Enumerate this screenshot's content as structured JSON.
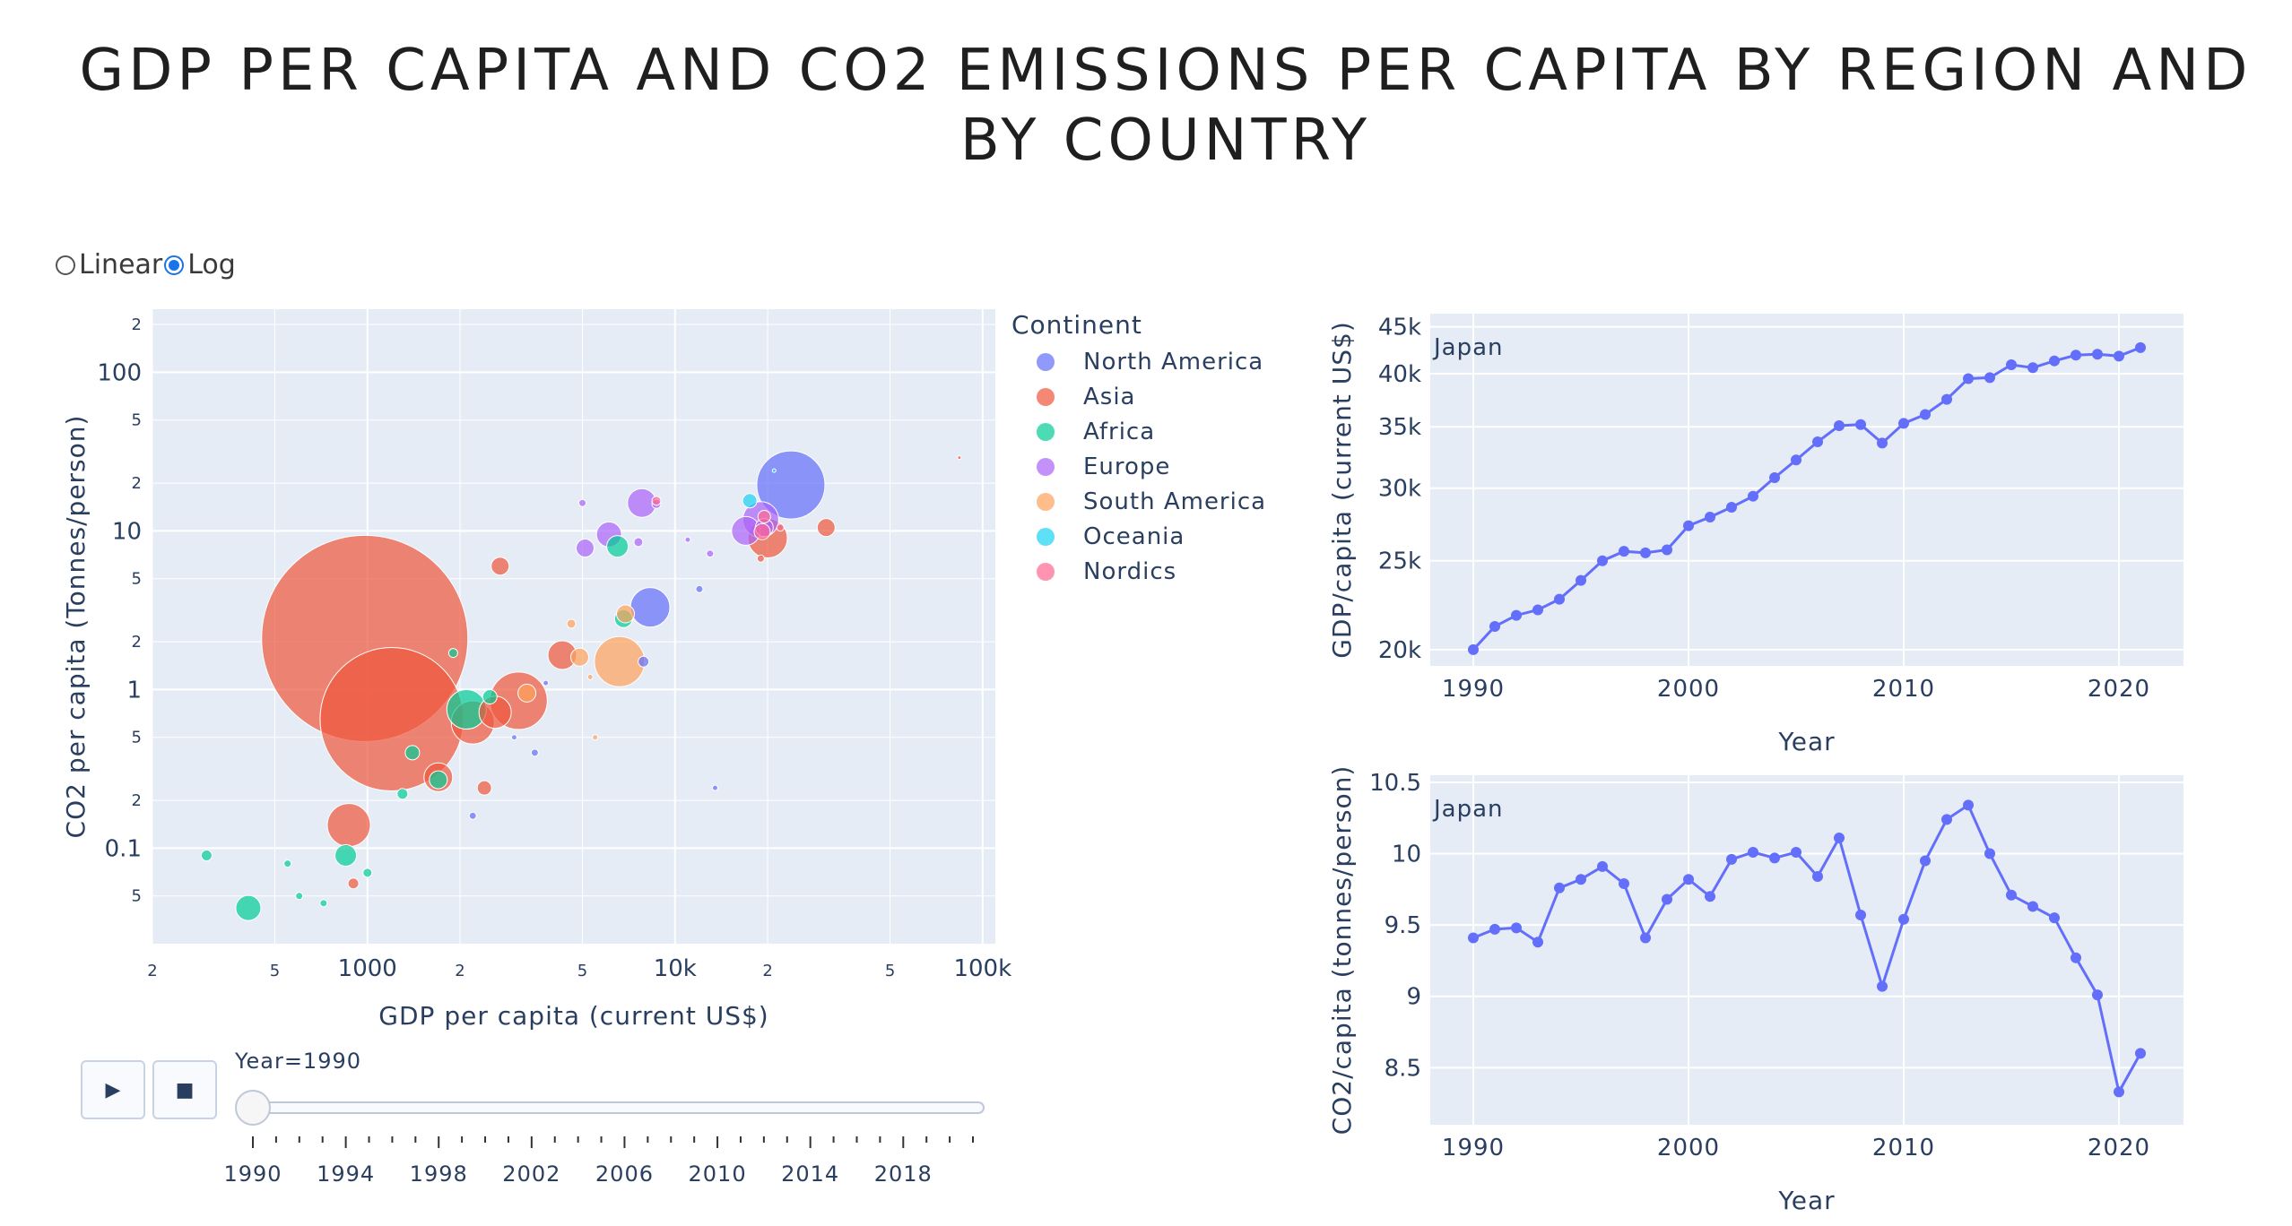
{
  "title": "GDP PER CAPITA AND CO2 EMISSIONS PER CAPITA BY REGION AND BY COUNTRY",
  "scale_toggle": {
    "options": [
      "Linear",
      "Log"
    ],
    "selected": "Log"
  },
  "colors": {
    "North America": "#636efa",
    "Asia": "#ef553b",
    "Africa": "#00cc96",
    "Europe": "#ab63fa",
    "South America": "#ffa15a",
    "Oceania": "#19d3f3",
    "Nordics": "#ff6692",
    "line": "#636efa",
    "plot_bg": "#e5ecf6"
  },
  "animation": {
    "play_icon": "play-icon",
    "stop_icon": "stop-icon",
    "current_label": "Year=1990",
    "tick_labels": [
      "1990",
      "1994",
      "1998",
      "2002",
      "2006",
      "2010",
      "2014",
      "2018"
    ],
    "value": 1990,
    "min": 1990,
    "max": 2021
  },
  "chart_data": [
    {
      "type": "scatter",
      "xlabel": "GDP per capita (current US$)",
      "ylabel": "CO2 per capita (Tonnes/person)",
      "log_x": true,
      "log_y": true,
      "xlim": [
        200,
        110000
      ],
      "ylim": [
        0.025,
        250
      ],
      "x_ticks": [
        {
          "v": 200,
          "t": "2"
        },
        {
          "v": 500,
          "t": "5"
        },
        {
          "v": 1000,
          "t": "1000"
        },
        {
          "v": 2000,
          "t": "2"
        },
        {
          "v": 5000,
          "t": "5"
        },
        {
          "v": 10000,
          "t": "10k"
        },
        {
          "v": 20000,
          "t": "2"
        },
        {
          "v": 50000,
          "t": "5"
        },
        {
          "v": 100000,
          "t": "100k"
        }
      ],
      "y_ticks": [
        {
          "v": 0.05,
          "t": "5"
        },
        {
          "v": 0.1,
          "t": "0.1"
        },
        {
          "v": 0.2,
          "t": "2"
        },
        {
          "v": 0.5,
          "t": "5"
        },
        {
          "v": 1,
          "t": "1"
        },
        {
          "v": 2,
          "t": "2"
        },
        {
          "v": 5,
          "t": "5"
        },
        {
          "v": 10,
          "t": "10"
        },
        {
          "v": 20,
          "t": "2"
        },
        {
          "v": 50,
          "t": "5"
        },
        {
          "v": 100,
          "t": "100"
        },
        {
          "v": 200,
          "t": "2"
        }
      ],
      "legend_title": "Continent",
      "legend_position": "right",
      "series": [
        {
          "name": "North America",
          "points": [
            [
              23800,
              19.5,
              38
            ],
            [
              8300,
              3.3,
              22
            ],
            [
              7900,
              1.5,
              6
            ],
            [
              3500,
              0.4,
              4
            ],
            [
              2200,
              0.16,
              4
            ],
            [
              13500,
              0.24,
              3
            ],
            [
              12000,
              4.3,
              4
            ],
            [
              3000,
              0.5,
              3
            ],
            [
              3800,
              1.1,
              3
            ]
          ]
        },
        {
          "name": "Asia",
          "points": [
            [
              980,
              2.1,
              115
            ],
            [
              1200,
              0.65,
              80
            ],
            [
              1700,
              0.28,
              16
            ],
            [
              870,
              0.14,
              24
            ],
            [
              2200,
              0.62,
              24
            ],
            [
              3100,
              0.85,
              32
            ],
            [
              2600,
              0.72,
              18
            ],
            [
              4300,
              1.65,
              16
            ],
            [
              2700,
              6.0,
              10
            ],
            [
              20000,
              9.0,
              22
            ],
            [
              31000,
              10.5,
              10
            ],
            [
              19000,
              6.7,
              4
            ],
            [
              2400,
              0.24,
              8
            ],
            [
              900,
              0.06,
              6
            ],
            [
              84000,
              29,
              2
            ]
          ]
        },
        {
          "name": "Africa",
          "points": [
            [
              300,
              0.09,
              6
            ],
            [
              410,
              0.042,
              14
            ],
            [
              720,
              0.045,
              4
            ],
            [
              550,
              0.08,
              4
            ],
            [
              850,
              0.09,
              12
            ],
            [
              1400,
              0.4,
              8
            ],
            [
              1700,
              0.27,
              10
            ],
            [
              2100,
              0.75,
              22
            ],
            [
              2500,
              0.9,
              8
            ],
            [
              6500,
              8.0,
              12
            ],
            [
              6800,
              2.8,
              10
            ],
            [
              1300,
              0.22,
              6
            ],
            [
              1900,
              1.7,
              5
            ],
            [
              1000,
              0.07,
              5
            ],
            [
              600,
              0.05,
              4
            ]
          ]
        },
        {
          "name": "Europe",
          "points": [
            [
              7800,
              15,
              16
            ],
            [
              6100,
              9.5,
              14
            ],
            [
              5100,
              7.8,
              10
            ],
            [
              7600,
              8.5,
              5
            ],
            [
              5000,
              15,
              4
            ],
            [
              19000,
              11.8,
              20
            ],
            [
              17000,
              10,
              16
            ],
            [
              13000,
              7.2,
              4
            ],
            [
              19500,
              10.5,
              10
            ],
            [
              11000,
              8.8,
              3
            ],
            [
              8700,
              14.8,
              5
            ]
          ]
        },
        {
          "name": "South America",
          "points": [
            [
              6600,
              1.5,
              28
            ],
            [
              4900,
              1.6,
              10
            ],
            [
              6900,
              3.0,
              10
            ],
            [
              4600,
              2.6,
              5
            ],
            [
              3300,
              0.95,
              10
            ],
            [
              5500,
              0.5,
              3
            ],
            [
              5300,
              1.2,
              3
            ]
          ]
        },
        {
          "name": "Oceania",
          "points": [
            [
              17500,
              15.5,
              8
            ],
            [
              21000,
              24,
              2
            ]
          ]
        },
        {
          "name": "Nordics",
          "points": [
            [
              19200,
              9.9,
              9
            ],
            [
              19500,
              12.3,
              7
            ],
            [
              8700,
              15.5,
              5
            ],
            [
              22000,
              10.5,
              4
            ]
          ]
        }
      ]
    },
    {
      "type": "line",
      "annotation": "Japan",
      "xlabel": "Year",
      "ylabel": "GDP/capita (current US$)",
      "log_y": true,
      "xlim": [
        1988,
        2023
      ],
      "ylim": [
        19200,
        46500
      ],
      "x_ticks": [
        1990,
        2000,
        2010,
        2020
      ],
      "y_ticks": [
        {
          "v": 20000,
          "t": "20k"
        },
        {
          "v": 25000,
          "t": "25k"
        },
        {
          "v": 30000,
          "t": "30k"
        },
        {
          "v": 35000,
          "t": "35k"
        },
        {
          "v": 40000,
          "t": "40k"
        },
        {
          "v": 45000,
          "t": "45k"
        }
      ],
      "x": [
        1990,
        1991,
        1992,
        1993,
        1994,
        1995,
        1996,
        1997,
        1998,
        1999,
        2000,
        2001,
        2002,
        2003,
        2004,
        2005,
        2006,
        2007,
        2008,
        2009,
        2010,
        2011,
        2012,
        2013,
        2014,
        2015,
        2016,
        2017,
        2018,
        2019,
        2020,
        2021
      ],
      "y": [
        20000,
        21200,
        21800,
        22100,
        22700,
        23800,
        25000,
        25600,
        25500,
        25700,
        27300,
        27900,
        28600,
        29400,
        30800,
        32200,
        33700,
        35100,
        35200,
        33600,
        35300,
        36100,
        37500,
        39500,
        39600,
        40900,
        40600,
        41300,
        41900,
        42000,
        41800,
        42700
      ]
    },
    {
      "type": "line",
      "annotation": "Japan",
      "xlabel": "Year",
      "ylabel": "CO2/capita (tonnes/person)",
      "xlim": [
        1988,
        2023
      ],
      "ylim": [
        8.1,
        10.55
      ],
      "x_ticks": [
        1990,
        2000,
        2010,
        2020
      ],
      "y_ticks": [
        {
          "v": 8.5,
          "t": "8.5"
        },
        {
          "v": 9,
          "t": "9"
        },
        {
          "v": 9.5,
          "t": "9.5"
        },
        {
          "v": 10,
          "t": "10"
        },
        {
          "v": 10.5,
          "t": "10.5"
        }
      ],
      "x": [
        1990,
        1991,
        1992,
        1993,
        1994,
        1995,
        1996,
        1997,
        1998,
        1999,
        2000,
        2001,
        2002,
        2003,
        2004,
        2005,
        2006,
        2007,
        2008,
        2009,
        2010,
        2011,
        2012,
        2013,
        2014,
        2015,
        2016,
        2017,
        2018,
        2019,
        2020,
        2021
      ],
      "y": [
        9.41,
        9.47,
        9.48,
        9.38,
        9.76,
        9.82,
        9.91,
        9.79,
        9.41,
        9.68,
        9.82,
        9.7,
        9.96,
        10.01,
        9.97,
        10.01,
        9.84,
        10.11,
        9.57,
        9.07,
        9.54,
        9.95,
        10.24,
        10.34,
        10.0,
        9.71,
        9.63,
        9.55,
        9.27,
        9.01,
        8.33,
        8.6
      ]
    }
  ]
}
